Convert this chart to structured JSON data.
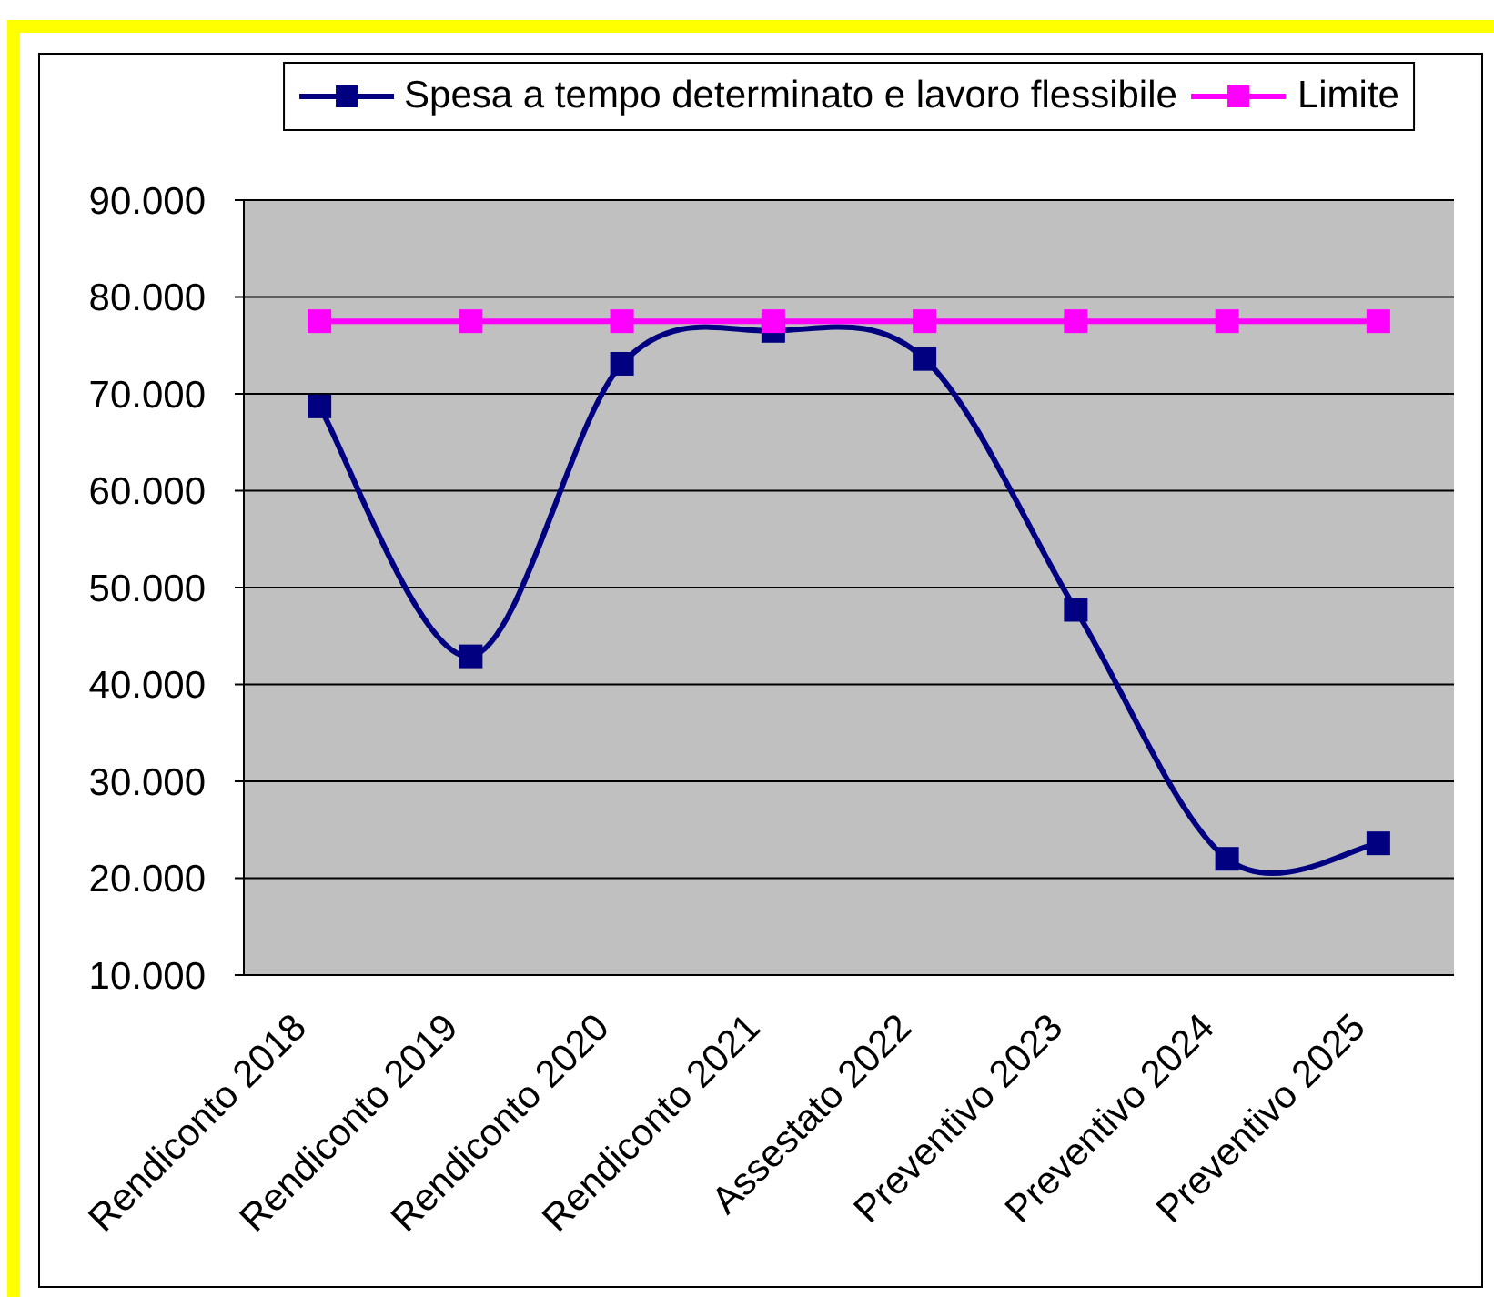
{
  "chart_data": {
    "type": "line",
    "categories": [
      "Rendiconto 2018",
      "Rendiconto 2019",
      "Rendiconto 2020",
      "Rendiconto 2021",
      "Assestato 2022",
      "Preventivo 2023",
      "Preventivo 2024",
      "Preventivo 2025"
    ],
    "series": [
      {
        "name": "Spesa a tempo determinato e lavoro flessibile",
        "color": "#000080",
        "values": [
          68700,
          42900,
          73100,
          76500,
          73600,
          47700,
          22000,
          23600
        ]
      },
      {
        "name": "Limite",
        "color": "#ff00ff",
        "values": [
          77500,
          77500,
          77500,
          77500,
          77500,
          77500,
          77500,
          77500
        ]
      }
    ],
    "ylim": [
      10000,
      90000
    ],
    "yticks": [
      {
        "value": 10000,
        "label": "10.000"
      },
      {
        "value": 20000,
        "label": "20.000"
      },
      {
        "value": 30000,
        "label": "30.000"
      },
      {
        "value": 40000,
        "label": "40.000"
      },
      {
        "value": 50000,
        "label": "50.000"
      },
      {
        "value": 60000,
        "label": "60.000"
      },
      {
        "value": 70000,
        "label": "70.000"
      },
      {
        "value": 80000,
        "label": "80.000"
      },
      {
        "value": 90000,
        "label": "90.000"
      }
    ],
    "grid": "y",
    "legend": "top",
    "marker": "square",
    "line_style": "solid"
  }
}
